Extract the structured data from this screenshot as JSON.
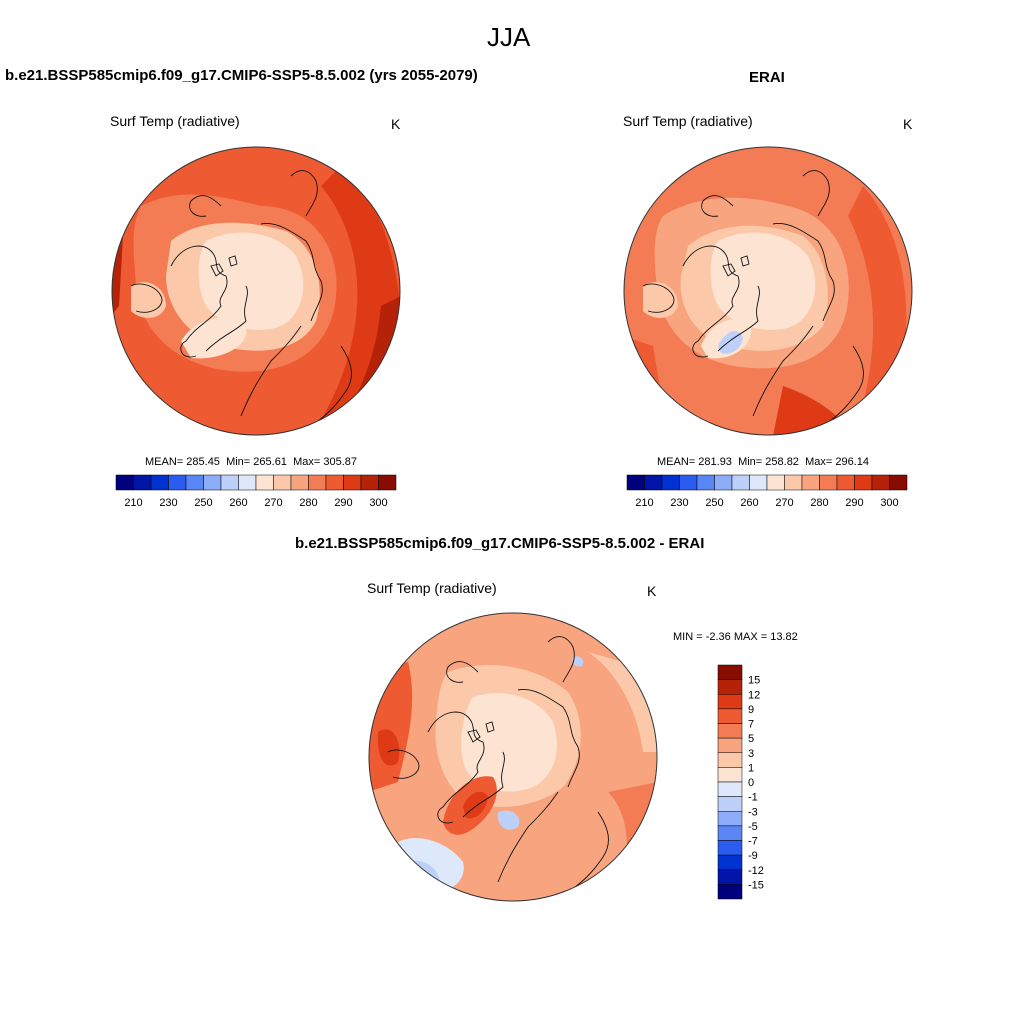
{
  "figure": {
    "title": "JJA"
  },
  "panels": [
    {
      "title": "b.e21.BSSP585cmip6.f09_g17.CMIP6-SSP5-8.5.002 (yrs 2055-2079)",
      "variable": "Surf Temp (radiative)",
      "units": "K",
      "stats": {
        "mean_label": "MEAN=",
        "mean": "285.45",
        "min_label": "Min=",
        "min": "265.61",
        "max_label": "Max=",
        "max": "305.87"
      }
    },
    {
      "title": "ERAI",
      "variable": "Surf Temp (radiative)",
      "units": "K",
      "stats": {
        "mean_label": "MEAN=",
        "mean": "281.93",
        "min_label": "Min=",
        "min": "258.82",
        "max_label": "Max=",
        "max": "296.14"
      }
    },
    {
      "title": "b.e21.BSSP585cmip6.f09_g17.CMIP6-SSP5-8.5.002 - ERAI",
      "variable": "Surf Temp (radiative)",
      "units": "K",
      "stats_text": "MIN =  -2.36 MAX =  13.82"
    }
  ],
  "colorbar_abs": {
    "colors": [
      "#00007f",
      "#0014a8",
      "#0032d2",
      "#2a5cf0",
      "#5a86f5",
      "#8eadf8",
      "#bcd0fa",
      "#dde9fb",
      "#fde3d2",
      "#fbc9a9",
      "#f8a47f",
      "#f47c55",
      "#ee5a32",
      "#de3a16",
      "#b52208",
      "#890c00"
    ],
    "ticks": [
      "210",
      "230",
      "250",
      "260",
      "270",
      "280",
      "290",
      "300"
    ]
  },
  "colorbar_diff": {
    "colors": [
      "#890c00",
      "#b52208",
      "#de3a16",
      "#ee5a32",
      "#f47c55",
      "#f8a47f",
      "#fbc9a9",
      "#fde3d2",
      "#dde9fb",
      "#bcd0fa",
      "#8eadf8",
      "#5a86f5",
      "#2a5cf0",
      "#0032d2",
      "#0014a8",
      "#00007f"
    ],
    "ticks": [
      "15",
      "12",
      "9",
      "7",
      "5",
      "3",
      "1",
      "0",
      "-1",
      "-3",
      "-5",
      "-7",
      "-9",
      "-12",
      "-15"
    ]
  }
}
